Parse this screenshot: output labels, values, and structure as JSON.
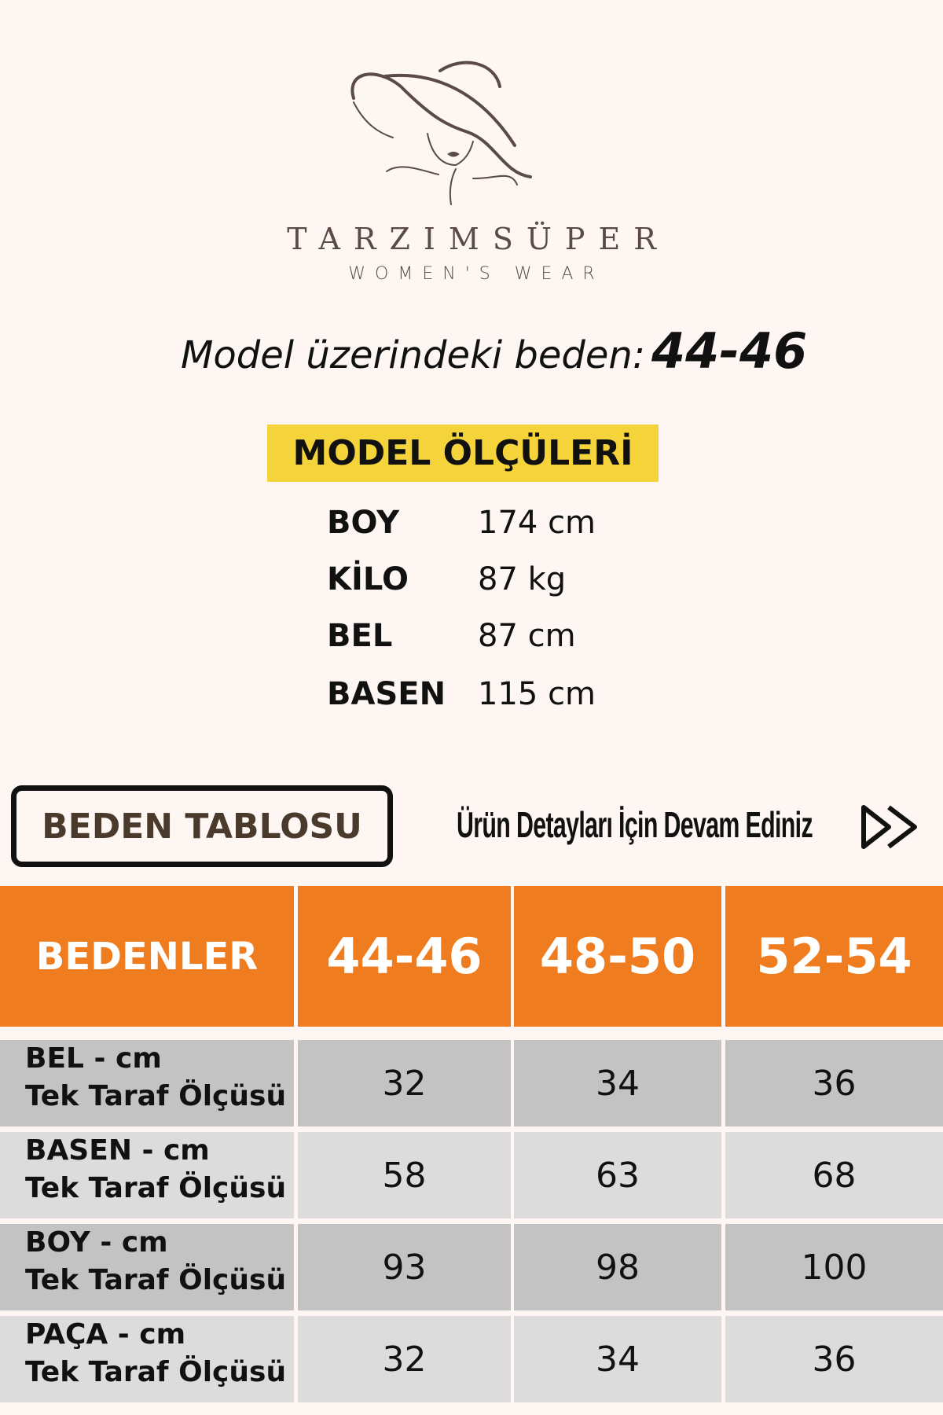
{
  "brand": {
    "name": "TARZIMSÜPER",
    "tagline": "WOMEN'S WEAR"
  },
  "model_size": {
    "label": "Model üzerindeki beden:",
    "value": "44-46"
  },
  "model_measurements": {
    "title": "MODEL ÖLÇÜLERİ",
    "rows": [
      {
        "key": "BOY",
        "value": "174 cm"
      },
      {
        "key": "KİLO",
        "value": "87 kg"
      },
      {
        "key": "BEL",
        "value": "87 cm"
      },
      {
        "key": "BASEN",
        "value": "115 cm"
      }
    ]
  },
  "size_table_button": "BEDEN TABLOSU",
  "continue_text": "Ürün Detayları İçin Devam Ediniz",
  "colors": {
    "header": "#f07c20",
    "highlight": "#f4d33b",
    "row_dark": "#c3c3c3",
    "row_light": "#dcdcdc"
  },
  "table": {
    "headers": [
      "BEDENLER",
      "44-46",
      "48-50",
      "52-54"
    ],
    "rows": [
      {
        "name": "BEL - cm",
        "sub": "Tek Taraf Ölçüsü",
        "values": [
          "32",
          "34",
          "36"
        ]
      },
      {
        "name": "BASEN - cm",
        "sub": "Tek Taraf Ölçüsü",
        "values": [
          "58",
          "63",
          "68"
        ]
      },
      {
        "name": "BOY - cm",
        "sub": "Tek Taraf Ölçüsü",
        "values": [
          "93",
          "98",
          "100"
        ]
      },
      {
        "name": "PAÇA - cm",
        "sub": "Tek Taraf Ölçüsü",
        "values": [
          "32",
          "34",
          "36"
        ]
      }
    ]
  }
}
